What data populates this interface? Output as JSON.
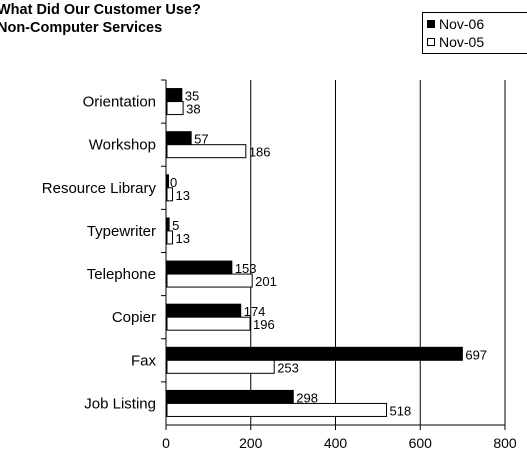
{
  "header": {
    "title_line1": "What Did Our Customer Use?",
    "title_line2": "Non-Computer Services"
  },
  "colors": {
    "nov06_fill": "#000000",
    "nov05_fill": "#ffffff",
    "stroke": "#000000",
    "grid": "#000000"
  },
  "chart_data": {
    "type": "bar",
    "orientation": "horizontal",
    "title": "What Did Our Customer Use? Non-Computer Services",
    "categories": [
      "Orientation",
      "Workshop",
      "Resource Library",
      "Typewriter",
      "Telephone",
      "Copier",
      "Fax",
      "Job Listing"
    ],
    "series": [
      {
        "name": "Nov-06",
        "values": [
          35,
          57,
          0,
          5,
          153,
          174,
          697,
          298
        ]
      },
      {
        "name": "Nov-05",
        "values": [
          38,
          186,
          13,
          13,
          201,
          196,
          253,
          518
        ]
      }
    ],
    "xlim": [
      0,
      800
    ],
    "xticks": [
      0,
      200,
      400,
      600,
      800
    ],
    "xlabel": "",
    "ylabel": "",
    "grid": true,
    "legend_position": "top-right"
  }
}
